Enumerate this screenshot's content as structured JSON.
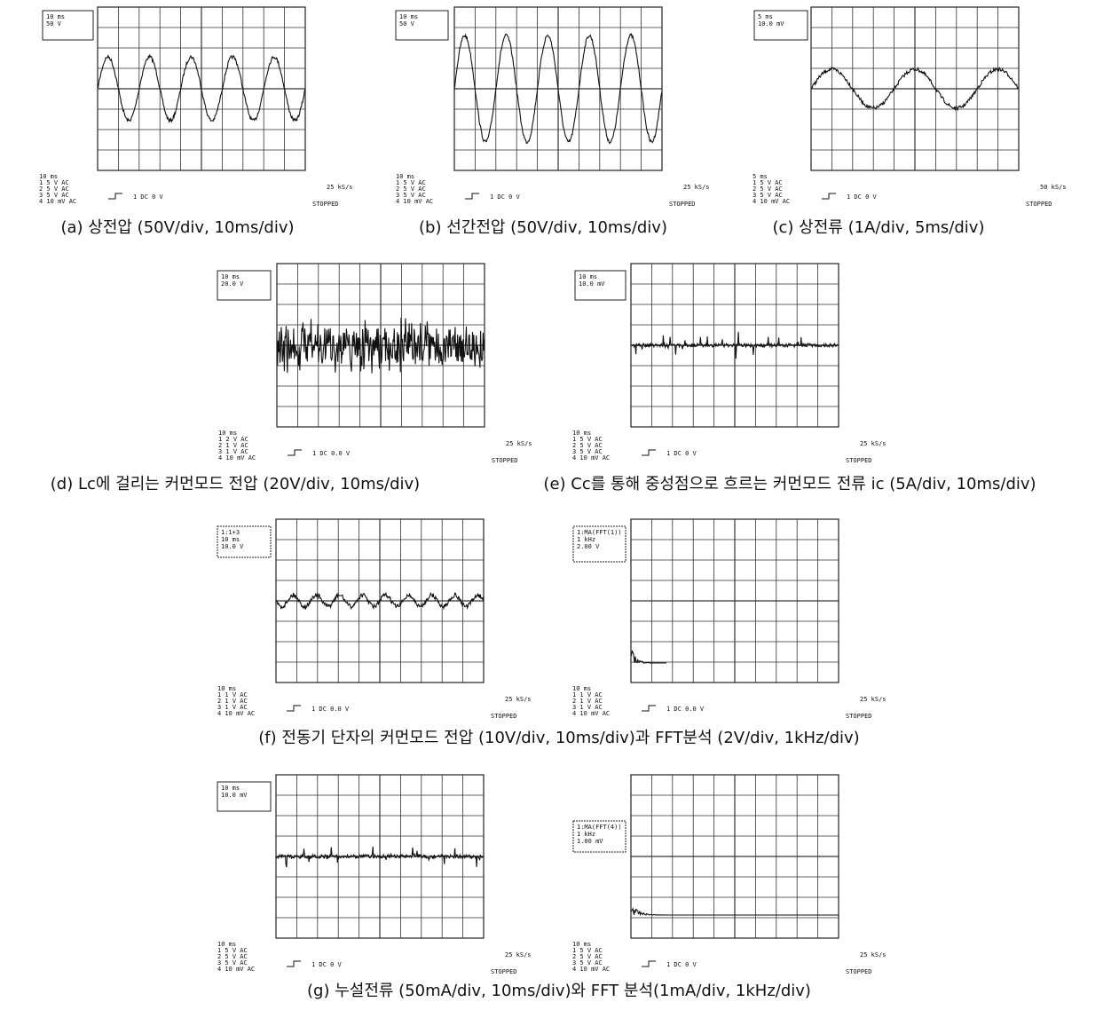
{
  "panels": [
    {
      "box": [
        "10 ms",
        "50 V"
      ],
      "footer": [
        "10 ms",
        "1 5 V AC",
        "2 5 V AC",
        "3 5 V AC",
        "4 10 mV AC"
      ],
      "trigger": "1 DC 0 V",
      "rate": "25 kS/s",
      "status": "STOPPED"
    },
    {
      "box": [
        "10 ms",
        "50 V"
      ],
      "footer": [
        "10 ms",
        "1 5 V AC",
        "2 5 V AC",
        "3 5 V AC",
        "4 10 mV AC"
      ],
      "trigger": "1 DC 0 V",
      "rate": "25 kS/s",
      "status": "STOPPED"
    },
    {
      "box": [
        "5 ms",
        "10.0 mV"
      ],
      "footer": [
        "5 ms",
        "1 5 V AC",
        "2 5 V AC",
        "3 5 V AC",
        "4 10 mV AC"
      ],
      "trigger": "1 DC 0 V",
      "rate": "50 kS/s",
      "status": "STOPPED"
    },
    {
      "box": [
        "10 ms",
        "20.0 V"
      ],
      "footer": [
        "10 ms",
        "1 2 V AC",
        "2 1 V AC",
        "3 1 V AC",
        "4 10 mV AC"
      ],
      "trigger": "1 DC 0.0 V",
      "rate": "25 kS/s",
      "status": "STOPPED"
    },
    {
      "box": [
        "10 ms",
        "10.0 mV"
      ],
      "footer": [
        "10 ms",
        "1 5 V AC",
        "2 5 V AC",
        "3 5 V AC",
        "4 10 mV AC"
      ],
      "trigger": "1 DC 0 V",
      "rate": "25 kS/s",
      "status": "STOPPED"
    },
    {
      "box": [
        "1:1+3",
        "10 ms",
        "10.0 V"
      ],
      "footer": [
        "10 ms",
        "1 1 V AC",
        "2 1 V AC",
        "3 1 V AC",
        "4 10 mV AC"
      ],
      "trigger": "1 DC 0.0 V",
      "rate": "25 kS/s",
      "status": "STOPPED"
    },
    {
      "box": [
        "1:MA(FFT(1))",
        "1 kHz",
        "2.00 V"
      ],
      "footer": [
        "10 ms",
        "1 1 V AC",
        "2 1 V AC",
        "3 1 V AC",
        "4 10 mV AC"
      ],
      "trigger": "1 DC 0.0 V",
      "rate": "25 kS/s",
      "status": "STOPPED"
    },
    {
      "box": [
        "10 ms",
        "10.0 mV"
      ],
      "footer": [
        "10 ms",
        "1 5 V AC",
        "2 5 V AC",
        "3 5 V AC",
        "4 10 mV AC"
      ],
      "trigger": "1 DC 0 V",
      "rate": "25 kS/s",
      "status": "STOPPED"
    },
    {
      "box": [
        "1:MA(FFT(4))",
        "1 kHz",
        "1.00 mV"
      ],
      "footer": [
        "10 ms",
        "1 5 V AC",
        "2 5 V AC",
        "3 5 V AC",
        "4 10 mV AC"
      ],
      "trigger": "1 DC 0 V",
      "rate": "25 kS/s",
      "status": "STOPPED"
    }
  ],
  "captions": [
    "(a) 상전압 (50V/div, 10ms/div)",
    "(b) 선간전압 (50V/div, 10ms/div)",
    "(c) 상전류 (1A/div, 5ms/div)",
    "(d) Lc에 걸리는 커먼모드 전압 (20V/div, 10ms/div)",
    "(e) Cc를 통해 중성점으로 흐르는 커먼모드 전류 ic (5A/div, 10ms/div)",
    "(f) 전동기 단자의 커먼모드 전압 (10V/div, 10ms/div)과 FFT분석 (2V/div, 1kHz/div)",
    "(g) 누설전류 (50mA/div, 10ms/div)와 FFT 분석(1mA/div, 1kHz/div)"
  ]
}
